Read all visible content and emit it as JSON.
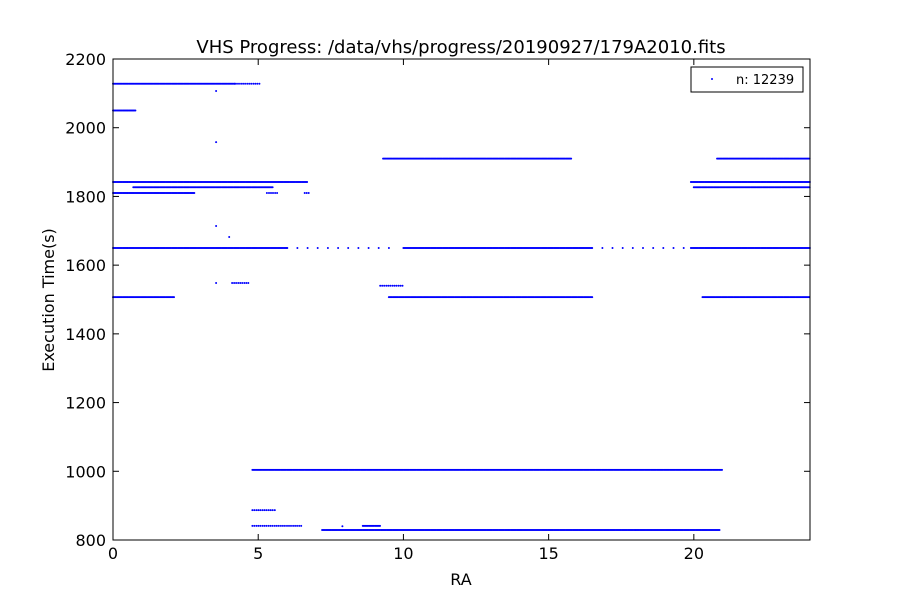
{
  "chart_data": {
    "type": "scatter",
    "title": "VHS Progress: /data/vhs/progress/20190927/179A2010.fits",
    "xlabel": "RA",
    "ylabel": "Execution Time(s)",
    "xlim": [
      0,
      24
    ],
    "ylim": [
      800,
      2200
    ],
    "xticks": [
      0,
      5,
      10,
      15,
      20
    ],
    "yticks": [
      800,
      1000,
      1200,
      1400,
      1600,
      1800,
      2000,
      2200
    ],
    "grid": false,
    "legend": {
      "label": "n: 12239",
      "placement": "top-right"
    },
    "marker_color": "#0000ff",
    "bands": [
      {
        "y": 2128,
        "ranges": [
          [
            0,
            4.2,
            "dense"
          ],
          [
            4.2,
            5.1,
            "medium"
          ]
        ]
      },
      {
        "y": 2050,
        "ranges": [
          [
            0,
            0.8,
            "dense"
          ]
        ]
      },
      {
        "y": 1910,
        "ranges": [
          [
            9.3,
            15.8,
            "dense"
          ],
          [
            20.8,
            24,
            "dense"
          ]
        ]
      },
      {
        "y": 1842,
        "ranges": [
          [
            0,
            6.7,
            "dense"
          ],
          [
            19.9,
            24,
            "dense"
          ]
        ]
      },
      {
        "y": 1827,
        "ranges": [
          [
            0.7,
            5.5,
            "dense"
          ],
          [
            20,
            24,
            "dense"
          ]
        ]
      },
      {
        "y": 1810,
        "ranges": [
          [
            0,
            2.8,
            "dense"
          ],
          [
            5.3,
            5.7,
            "medium"
          ],
          [
            6.6,
            6.8,
            "medium"
          ]
        ]
      },
      {
        "y": 1650,
        "ranges": [
          [
            0,
            6.0,
            "dense"
          ],
          [
            6.0,
            9.8,
            "sparse"
          ],
          [
            10,
            16.5,
            "dense"
          ],
          [
            16.5,
            19.8,
            "sparse"
          ],
          [
            19.9,
            24,
            "dense"
          ]
        ]
      },
      {
        "y": 1548,
        "ranges": [
          [
            4.1,
            4.7,
            "medium"
          ]
        ]
      },
      {
        "y": 1540,
        "ranges": [
          [
            9.2,
            10.0,
            "medium"
          ]
        ]
      },
      {
        "y": 1507,
        "ranges": [
          [
            0,
            2.1,
            "dense"
          ],
          [
            9.5,
            16.5,
            "dense"
          ],
          [
            20.3,
            24,
            "dense"
          ]
        ]
      },
      {
        "y": 1004,
        "ranges": [
          [
            4.8,
            21.0,
            "dense"
          ]
        ]
      },
      {
        "y": 887,
        "ranges": [
          [
            4.8,
            5.6,
            "medium"
          ]
        ]
      },
      {
        "y": 841,
        "ranges": [
          [
            4.8,
            6.5,
            "medium"
          ],
          [
            8.6,
            9.2,
            "dense"
          ]
        ]
      },
      {
        "y": 829,
        "ranges": [
          [
            7.2,
            20.9,
            "dense"
          ]
        ]
      }
    ],
    "points": [
      [
        3.55,
        2107
      ],
      [
        3.55,
        1958
      ],
      [
        3.55,
        1714
      ],
      [
        4.0,
        1682
      ],
      [
        3.55,
        1548
      ],
      [
        7.9,
        840
      ]
    ]
  }
}
